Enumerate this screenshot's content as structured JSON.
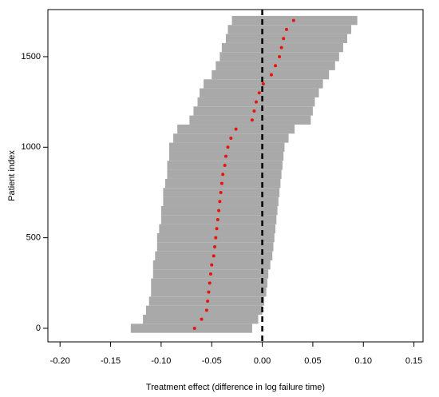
{
  "chart_data": {
    "type": "interval",
    "xlabel": "Treatment effect (difference in log failure time)",
    "ylabel": "Patient index",
    "patient": [
      0,
      50,
      100,
      150,
      200,
      250,
      300,
      350,
      400,
      450,
      500,
      550,
      600,
      650,
      700,
      750,
      800,
      850,
      900,
      950,
      1000,
      1050,
      1100,
      1150,
      1200,
      1250,
      1300,
      1350,
      1400,
      1450,
      1500,
      1550,
      1600,
      1650,
      1700
    ],
    "estimate": [
      -0.067,
      -0.06,
      -0.055,
      -0.054,
      -0.053,
      -0.052,
      -0.051,
      -0.05,
      -0.048,
      -0.047,
      -0.046,
      -0.045,
      -0.044,
      -0.043,
      -0.042,
      -0.041,
      -0.04,
      -0.039,
      -0.037,
      -0.036,
      -0.034,
      -0.031,
      -0.026,
      -0.01,
      -0.008,
      -0.006,
      -0.003,
      0.001,
      0.009,
      0.013,
      0.017,
      0.019,
      0.021,
      0.024,
      0.031
    ],
    "lower": [
      -0.13,
      -0.118,
      -0.115,
      -0.112,
      -0.11,
      -0.11,
      -0.108,
      -0.108,
      -0.106,
      -0.104,
      -0.104,
      -0.102,
      -0.1,
      -0.1,
      -0.098,
      -0.098,
      -0.096,
      -0.094,
      -0.094,
      -0.092,
      -0.092,
      -0.088,
      -0.084,
      -0.072,
      -0.068,
      -0.064,
      -0.062,
      -0.058,
      -0.05,
      -0.046,
      -0.042,
      -0.04,
      -0.036,
      -0.034,
      -0.03
    ],
    "upper": [
      -0.01,
      -0.004,
      0.0,
      0.002,
      0.004,
      0.005,
      0.006,
      0.008,
      0.01,
      0.011,
      0.012,
      0.013,
      0.014,
      0.015,
      0.016,
      0.017,
      0.018,
      0.019,
      0.02,
      0.021,
      0.022,
      0.026,
      0.032,
      0.048,
      0.05,
      0.052,
      0.056,
      0.06,
      0.066,
      0.072,
      0.076,
      0.08,
      0.084,
      0.088,
      0.094
    ],
    "estimate_color": "#e8140c",
    "interval_color": "#a9a9a9",
    "reference_line": 0,
    "xlim": [
      -0.212,
      0.159
    ],
    "ylim": [
      -75,
      1760
    ],
    "xticks": [
      {
        "value": -0.2,
        "label": "-0.20"
      },
      {
        "value": -0.15,
        "label": "-0.15"
      },
      {
        "value": -0.1,
        "label": "-0.10"
      },
      {
        "value": -0.05,
        "label": "-0.05"
      },
      {
        "value": 0,
        "label": "0.00"
      },
      {
        "value": 0.05,
        "label": "0.05"
      },
      {
        "value": 0.1,
        "label": "0.10"
      },
      {
        "value": 0.15,
        "label": "0.15"
      }
    ],
    "yticks": [
      0,
      500,
      1000,
      1500
    ]
  }
}
